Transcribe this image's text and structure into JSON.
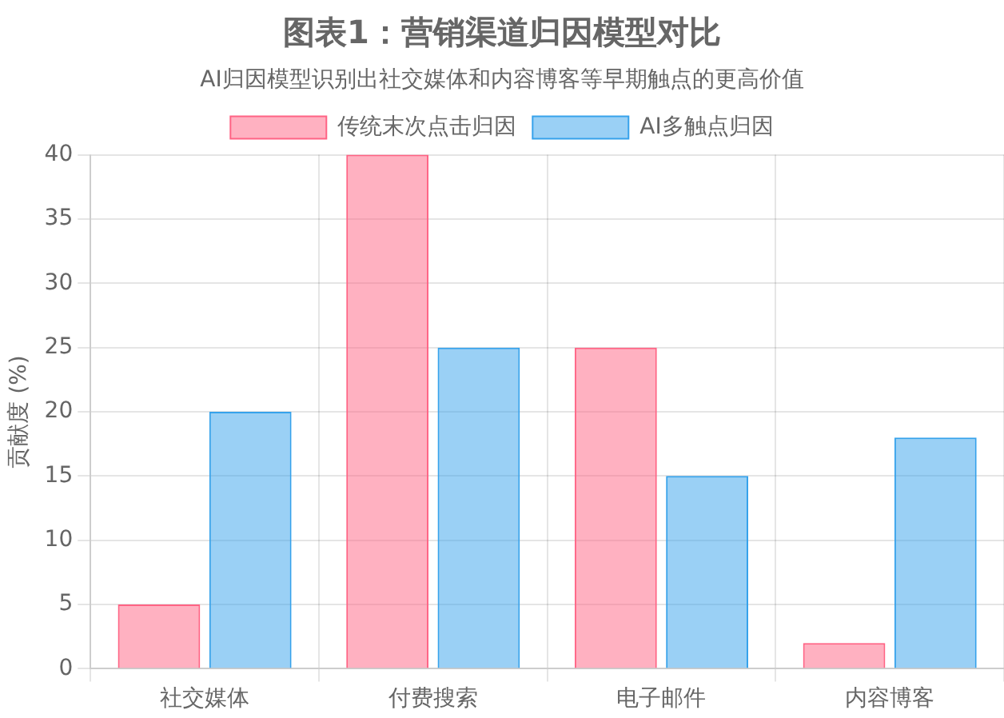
{
  "chart_data": {
    "type": "bar",
    "title": "图表1：营销渠道归因模型对比",
    "subtitle": "AI归因模型识别出社交媒体和内容博客等早期触点的更高价值",
    "ylabel": "贡献度 (%)",
    "categories": [
      "社交媒体",
      "付费搜索",
      "电子邮件",
      "内容博客"
    ],
    "series": [
      {
        "name": "传统末次点击归因",
        "color": "#ff6384",
        "values": [
          5,
          40,
          25,
          2
        ]
      },
      {
        "name": "AI多触点归因",
        "color": "#36a2eb",
        "values": [
          20,
          25,
          15,
          18
        ]
      }
    ],
    "ylim": [
      0,
      40
    ],
    "yticks": [
      0,
      5,
      10,
      15,
      20,
      25,
      30,
      35,
      40
    ],
    "grid": true,
    "legend": "top"
  }
}
